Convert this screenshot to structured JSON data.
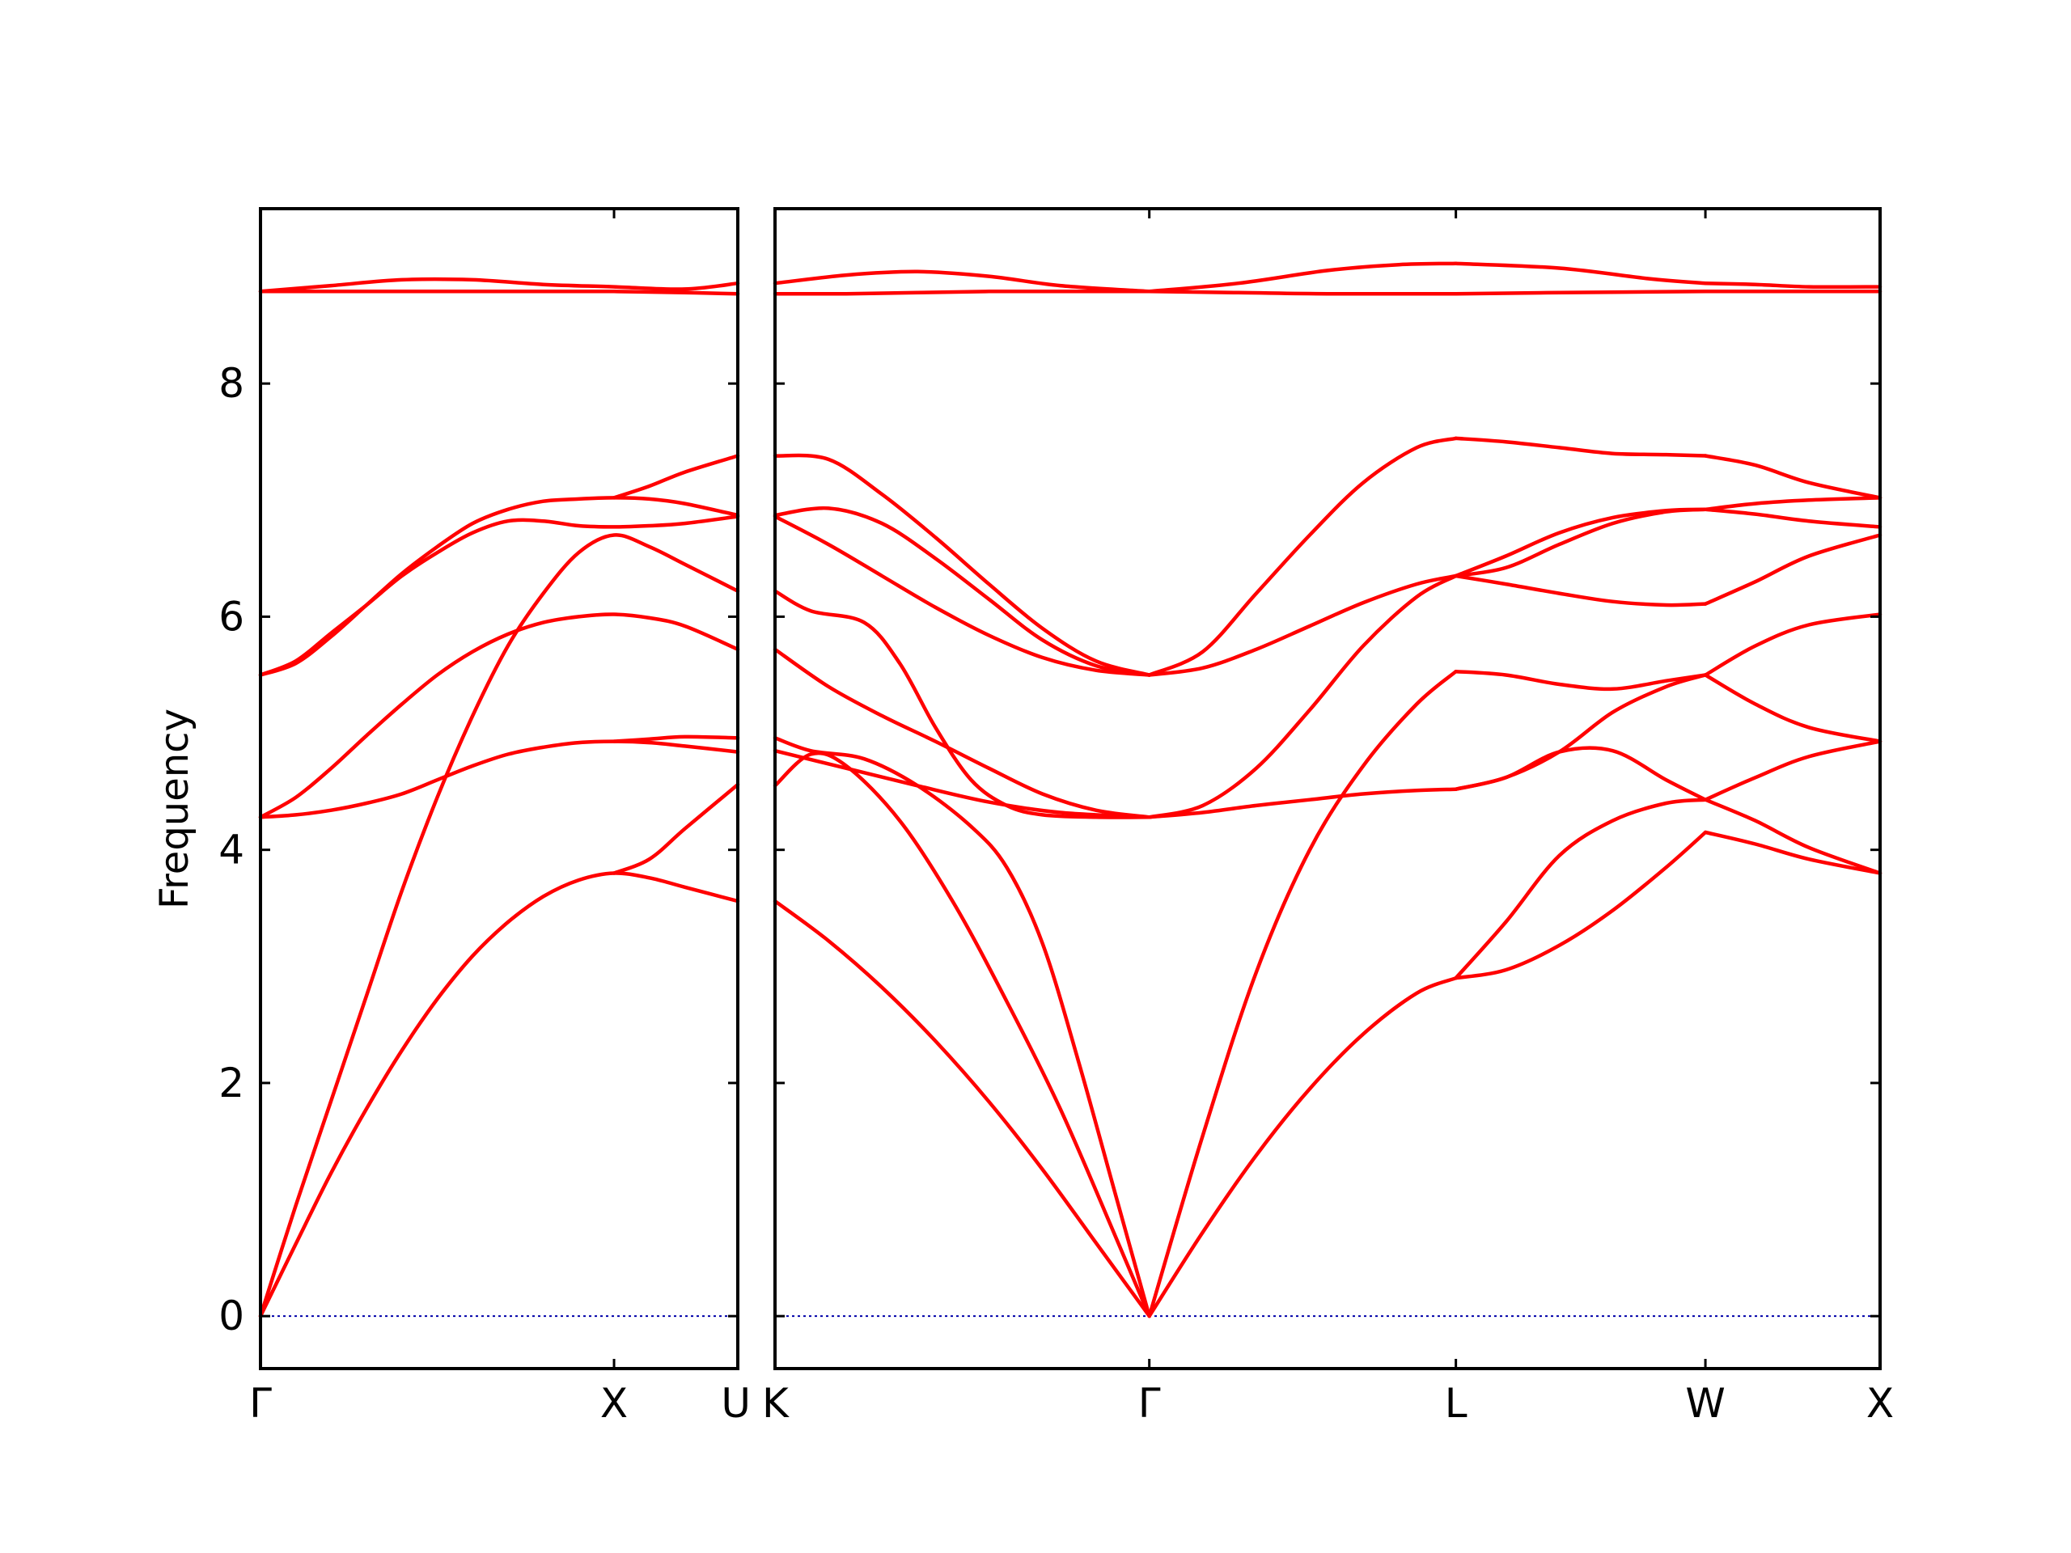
{
  "chart_data": {
    "type": "line",
    "title": "",
    "ylabel": "Frequency",
    "ylim": [
      -0.45,
      9.5
    ],
    "yticks": [
      0,
      2,
      4,
      6,
      8
    ],
    "grid": false,
    "band_color": "#ff0000",
    "zero_line_color": "#0000aa",
    "panels": [
      {
        "name": "panel-1",
        "xlim": [
          0,
          1.35
        ],
        "xticks": [
          {
            "x": 0,
            "label": "Γ"
          },
          {
            "x": 1.0,
            "label": "X"
          },
          {
            "x": 1.35,
            "label": "U"
          }
        ],
        "series": [
          {
            "x": [
              0,
              0.1,
              0.2,
              0.3,
              0.4,
              0.5,
              0.6,
              0.7,
              0.8,
              0.9,
              1.0,
              1.1,
              1.2,
              1.35
            ],
            "y": [
              0,
              0.62,
              1.23,
              1.78,
              2.28,
              2.72,
              3.09,
              3.38,
              3.6,
              3.74,
              3.8,
              3.76,
              3.68,
              3.56
            ]
          },
          {
            "x": [
              0,
              0.1,
              0.2,
              0.3,
              0.4,
              0.5,
              0.6,
              0.7,
              0.8,
              0.9,
              1.0,
              1.1,
              1.2,
              1.35
            ],
            "y": [
              0,
              0.95,
              1.85,
              2.75,
              3.65,
              4.45,
              5.15,
              5.75,
              6.2,
              6.55,
              6.7,
              6.6,
              6.45,
              6.22
            ]
          },
          {
            "x": [
              0,
              0.1,
              0.2,
              0.3,
              0.4,
              0.5,
              0.6,
              0.7,
              0.8,
              0.9,
              1.0,
              1.1,
              1.2,
              1.35
            ],
            "y": [
              4.28,
              4.3,
              4.34,
              4.4,
              4.48,
              4.6,
              4.72,
              4.82,
              4.88,
              4.92,
              4.93,
              4.92,
              4.89,
              4.84
            ]
          },
          {
            "x": [
              0,
              0.1,
              0.2,
              0.3,
              0.4,
              0.5,
              0.6,
              0.7,
              0.8,
              0.9,
              1.0,
              1.1,
              1.2,
              1.35
            ],
            "y": [
              4.28,
              4.45,
              4.7,
              4.98,
              5.25,
              5.5,
              5.7,
              5.85,
              5.95,
              6.0,
              6.02,
              5.99,
              5.92,
              5.72
            ]
          },
          {
            "x": [
              0,
              0.1,
              0.2,
              0.3,
              0.4,
              0.5,
              0.6,
              0.7,
              0.8,
              0.9,
              1.0,
              1.1,
              1.2,
              1.35
            ],
            "y": [
              5.5,
              5.62,
              5.86,
              6.1,
              6.35,
              6.55,
              6.72,
              6.82,
              6.82,
              6.78,
              6.77,
              6.78,
              6.8,
              6.86
            ]
          },
          {
            "x": [
              0,
              0.1,
              0.2,
              0.3,
              0.4,
              0.5,
              0.6,
              0.7,
              0.8,
              0.9,
              1.0,
              1.1,
              1.2,
              1.35
            ],
            "y": [
              5.5,
              5.6,
              5.83,
              6.1,
              6.37,
              6.6,
              6.8,
              6.92,
              6.99,
              7.01,
              7.02,
              7.01,
              6.97,
              6.87
            ]
          },
          {
            "x": [
              1.0,
              1.1,
              1.2,
              1.35
            ],
            "y": [
              3.8,
              3.92,
              4.18,
              4.56
            ]
          },
          {
            "x": [
              1.0,
              1.1,
              1.2,
              1.35
            ],
            "y": [
              4.93,
              4.95,
              4.97,
              4.96
            ]
          },
          {
            "x": [
              1.0,
              1.1,
              1.2,
              1.35
            ],
            "y": [
              7.02,
              7.12,
              7.24,
              7.38
            ]
          },
          {
            "x": [
              0,
              0.2,
              0.4,
              0.6,
              0.8,
              1.0,
              1.2,
              1.35
            ],
            "y": [
              8.79,
              8.79,
              8.79,
              8.79,
              8.79,
              8.79,
              8.78,
              8.77
            ]
          },
          {
            "x": [
              0,
              0.2,
              0.4,
              0.6,
              0.8,
              1.0,
              1.2,
              1.35
            ],
            "y": [
              8.79,
              8.84,
              8.89,
              8.89,
              8.85,
              8.83,
              8.81,
              8.86
            ]
          }
        ]
      },
      {
        "name": "panel-2",
        "xlim": [
          0,
          3.1
        ],
        "xticks": [
          {
            "x": 0,
            "label": "K"
          },
          {
            "x": 1.05,
            "label": "Γ"
          },
          {
            "x": 1.91,
            "label": "L"
          },
          {
            "x": 2.61,
            "label": "W"
          },
          {
            "x": 3.1,
            "label": "X"
          }
        ],
        "series": [
          {
            "x": [
              0,
              0.15,
              0.3,
              0.45,
              0.6,
              0.75,
              0.9,
              1.05
            ],
            "y": [
              3.56,
              3.22,
              2.82,
              2.36,
              1.84,
              1.26,
              0.63,
              0
            ]
          },
          {
            "x": [
              0,
              0.1,
              0.2,
              0.35,
              0.5,
              0.65,
              0.8,
              0.95,
              1.05
            ],
            "y": [
              4.55,
              4.82,
              4.72,
              4.25,
              3.55,
              2.7,
              1.78,
              0.72,
              0
            ]
          },
          {
            "x": [
              0,
              0.1,
              0.25,
              0.4,
              0.55,
              0.65,
              0.75,
              0.85,
              0.95,
              1.05
            ],
            "y": [
              4.96,
              4.85,
              4.78,
              4.55,
              4.2,
              3.85,
              3.2,
              2.2,
              1.1,
              0
            ]
          },
          {
            "x": [
              0,
              0.2,
              0.4,
              0.6,
              0.8,
              1.05
            ],
            "y": [
              4.85,
              4.7,
              4.55,
              4.41,
              4.32,
              4.28
            ]
          },
          {
            "x": [
              0,
              0.15,
              0.3,
              0.45,
              0.6,
              0.75,
              0.9,
              1.05
            ],
            "y": [
              5.72,
              5.4,
              5.15,
              4.93,
              4.7,
              4.48,
              4.34,
              4.28
            ]
          },
          {
            "x": [
              0,
              0.1,
              0.25,
              0.35,
              0.45,
              0.55,
              0.65,
              0.75,
              0.9,
              1.05
            ],
            "y": [
              6.22,
              6.05,
              5.95,
              5.6,
              5.05,
              4.6,
              4.38,
              4.3,
              4.28,
              4.28
            ]
          },
          {
            "x": [
              0,
              0.15,
              0.3,
              0.45,
              0.6,
              0.75,
              0.9,
              1.05
            ],
            "y": [
              6.86,
              6.62,
              6.35,
              6.08,
              5.84,
              5.65,
              5.54,
              5.5
            ]
          },
          {
            "x": [
              0,
              0.15,
              0.3,
              0.45,
              0.6,
              0.75,
              0.9,
              1.05
            ],
            "y": [
              6.87,
              6.93,
              6.8,
              6.5,
              6.15,
              5.8,
              5.58,
              5.5
            ]
          },
          {
            "x": [
              0,
              0.15,
              0.3,
              0.45,
              0.6,
              0.75,
              0.9,
              1.05
            ],
            "y": [
              7.38,
              7.35,
              7.05,
              6.68,
              6.28,
              5.9,
              5.62,
              5.5
            ]
          },
          {
            "x": [
              0,
              0.2,
              0.4,
              0.6,
              0.8,
              1.05
            ],
            "y": [
              8.77,
              8.77,
              8.78,
              8.79,
              8.79,
              8.79
            ]
          },
          {
            "x": [
              0,
              0.2,
              0.4,
              0.6,
              0.8,
              1.05
            ],
            "y": [
              8.86,
              8.93,
              8.96,
              8.92,
              8.84,
              8.79
            ]
          },
          {
            "x": [
              1.05,
              1.2,
              1.35,
              1.5,
              1.65,
              1.8,
              1.91
            ],
            "y": [
              0,
              0.72,
              1.38,
              1.95,
              2.42,
              2.77,
              2.9
            ]
          },
          {
            "x": [
              1.05,
              1.2,
              1.35,
              1.5,
              1.65,
              1.8,
              1.91
            ],
            "y": [
              0,
              1.55,
              2.95,
              4.0,
              4.72,
              5.25,
              5.53
            ]
          },
          {
            "x": [
              1.05,
              1.2,
              1.35,
              1.5,
              1.65,
              1.8,
              1.91
            ],
            "y": [
              4.28,
              4.32,
              4.38,
              4.43,
              4.48,
              4.51,
              4.52
            ]
          },
          {
            "x": [
              1.05,
              1.2,
              1.35,
              1.5,
              1.65,
              1.8,
              1.91
            ],
            "y": [
              4.28,
              4.38,
              4.7,
              5.2,
              5.75,
              6.17,
              6.35
            ]
          },
          {
            "x": [
              1.05,
              1.2,
              1.35,
              1.5,
              1.65,
              1.8,
              1.91
            ],
            "y": [
              5.5,
              5.56,
              5.72,
              5.92,
              6.12,
              6.28,
              6.35
            ]
          },
          {
            "x": [
              1.05,
              1.2,
              1.35,
              1.5,
              1.65,
              1.8,
              1.91
            ],
            "y": [
              5.5,
              5.7,
              6.2,
              6.7,
              7.15,
              7.45,
              7.53
            ]
          },
          {
            "x": [
              1.05,
              1.3,
              1.55,
              1.91
            ],
            "y": [
              8.79,
              8.78,
              8.77,
              8.77
            ]
          },
          {
            "x": [
              1.05,
              1.3,
              1.55,
              1.75,
              1.91
            ],
            "y": [
              8.79,
              8.86,
              8.97,
              9.02,
              9.03
            ]
          },
          {
            "x": [
              1.91,
              2.05,
              2.2,
              2.35,
              2.5,
              2.61
            ],
            "y": [
              2.9,
              2.97,
              3.18,
              3.48,
              3.85,
              4.15
            ]
          },
          {
            "x": [
              1.91,
              2.05,
              2.2,
              2.35,
              2.5,
              2.61
            ],
            "y": [
              2.9,
              3.38,
              3.95,
              4.25,
              4.4,
              4.43
            ]
          },
          {
            "x": [
              1.91,
              2.05,
              2.2,
              2.35,
              2.5,
              2.61
            ],
            "y": [
              4.52,
              4.62,
              4.84,
              4.85,
              4.6,
              4.43
            ]
          },
          {
            "x": [
              1.91,
              2.05,
              2.2,
              2.35,
              2.5,
              2.61
            ],
            "y": [
              4.52,
              4.62,
              4.84,
              5.18,
              5.4,
              5.5
            ]
          },
          {
            "x": [
              1.91,
              2.05,
              2.2,
              2.35,
              2.5,
              2.61
            ],
            "y": [
              5.53,
              5.5,
              5.42,
              5.38,
              5.45,
              5.5
            ]
          },
          {
            "x": [
              1.91,
              2.05,
              2.2,
              2.35,
              2.5,
              2.61
            ],
            "y": [
              6.35,
              6.28,
              6.2,
              6.13,
              6.1,
              6.11
            ]
          },
          {
            "x": [
              1.91,
              2.05,
              2.2,
              2.35,
              2.5,
              2.61
            ],
            "y": [
              6.35,
              6.42,
              6.62,
              6.8,
              6.9,
              6.92
            ]
          },
          {
            "x": [
              1.91,
              2.05,
              2.2,
              2.35,
              2.5,
              2.61
            ],
            "y": [
              6.35,
              6.52,
              6.72,
              6.85,
              6.91,
              6.92
            ]
          },
          {
            "x": [
              1.91,
              2.05,
              2.2,
              2.35,
              2.5,
              2.61
            ],
            "y": [
              7.53,
              7.5,
              7.45,
              7.4,
              7.39,
              7.38
            ]
          },
          {
            "x": [
              1.91,
              2.2,
              2.61
            ],
            "y": [
              8.77,
              8.78,
              8.79
            ]
          },
          {
            "x": [
              1.91,
              2.2,
              2.45,
              2.61
            ],
            "y": [
              9.03,
              8.99,
              8.9,
              8.86
            ]
          },
          {
            "x": [
              2.61,
              2.75,
              2.9,
              3.1
            ],
            "y": [
              4.15,
              4.05,
              3.92,
              3.8
            ]
          },
          {
            "x": [
              2.61,
              2.75,
              2.9,
              3.1
            ],
            "y": [
              4.43,
              4.25,
              4.02,
              3.8
            ]
          },
          {
            "x": [
              2.61,
              2.75,
              2.9,
              3.1
            ],
            "y": [
              4.43,
              4.62,
              4.8,
              4.93
            ]
          },
          {
            "x": [
              2.61,
              2.75,
              2.9,
              3.1
            ],
            "y": [
              5.5,
              5.25,
              5.05,
              4.93
            ]
          },
          {
            "x": [
              2.61,
              2.75,
              2.9,
              3.1
            ],
            "y": [
              5.5,
              5.75,
              5.93,
              6.02
            ]
          },
          {
            "x": [
              2.61,
              2.75,
              2.9,
              3.1
            ],
            "y": [
              6.11,
              6.3,
              6.52,
              6.7
            ]
          },
          {
            "x": [
              2.61,
              2.75,
              2.9,
              3.1
            ],
            "y": [
              6.92,
              6.88,
              6.82,
              6.77
            ]
          },
          {
            "x": [
              2.61,
              2.75,
              2.9,
              3.1
            ],
            "y": [
              6.92,
              6.97,
              7.0,
              7.02
            ]
          },
          {
            "x": [
              2.61,
              2.75,
              2.9,
              3.1
            ],
            "y": [
              7.38,
              7.3,
              7.15,
              7.02
            ]
          },
          {
            "x": [
              2.61,
              2.85,
              3.1
            ],
            "y": [
              8.79,
              8.79,
              8.79
            ]
          },
          {
            "x": [
              2.61,
              2.75,
              2.9,
              3.1
            ],
            "y": [
              8.86,
              8.85,
              8.83,
              8.83
            ]
          }
        ]
      }
    ]
  }
}
